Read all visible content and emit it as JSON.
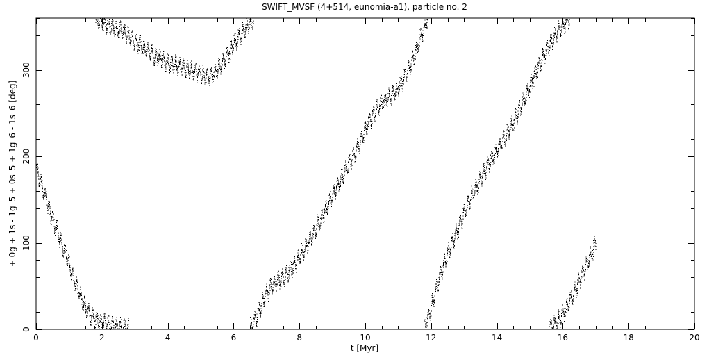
{
  "chart_data": {
    "type": "scatter",
    "title": "SWIFT_MVSF (4+514, eunomia-a1), particle no. 2",
    "xlabel": "t [Myr]",
    "ylabel": "+ 0g + 1s - 1g_5 + 0s_5 + 1g_6 - 1s_6 [deg]",
    "xlim": [
      0,
      20
    ],
    "ylim": [
      0,
      360
    ],
    "xticks": [
      0,
      2,
      4,
      6,
      8,
      10,
      12,
      14,
      16,
      18,
      20
    ],
    "yticks": [
      0,
      100,
      200,
      300
    ],
    "grid": false,
    "legend": "none",
    "point_color": "#000000",
    "series": [
      {
        "x": [
          0.0,
          0.2,
          0.4,
          0.6,
          0.8,
          1.0,
          1.2,
          1.4,
          1.6,
          1.8,
          2.0,
          2.2,
          2.4,
          2.6,
          2.8
        ],
        "values": [
          185,
          162,
          138,
          118,
          95,
          75,
          52,
          33,
          18,
          12,
          8,
          5,
          3,
          2,
          1
        ]
      },
      {
        "x": [
          1.8,
          2.0,
          2.2,
          2.4,
          2.6,
          2.8,
          3.0,
          3.2,
          3.4,
          3.6,
          3.8,
          4.0,
          4.2,
          4.4,
          4.6,
          4.8,
          5.0,
          5.2,
          5.4,
          5.6,
          5.8,
          6.0,
          6.2,
          6.4,
          6.6
        ],
        "values": [
          360,
          355,
          352,
          348,
          345,
          340,
          333,
          328,
          322,
          316,
          312,
          308,
          307,
          304,
          301,
          299,
          295,
          292,
          297,
          305,
          318,
          330,
          340,
          352,
          360
        ]
      },
      {
        "x": [
          6.5,
          6.7,
          6.9,
          7.1,
          7.3,
          7.5,
          7.7,
          7.9,
          8.1,
          8.3,
          8.5,
          8.7,
          8.9,
          9.1,
          9.3,
          9.5,
          9.7,
          9.9,
          10.1,
          10.3,
          10.5,
          10.7,
          10.9,
          11.1,
          11.3,
          11.5,
          11.7,
          11.9
        ],
        "values": [
          2,
          15,
          35,
          48,
          55,
          60,
          68,
          78,
          90,
          102,
          118,
          132,
          148,
          162,
          178,
          192,
          205,
          222,
          240,
          253,
          262,
          268,
          275,
          285,
          300,
          318,
          340,
          360
        ]
      },
      {
        "x": [
          11.8,
          12.0,
          12.2,
          12.4,
          12.6,
          12.8,
          13.0,
          13.2,
          13.4,
          13.6,
          13.8,
          14.0,
          14.2,
          14.4,
          14.6,
          14.8,
          15.0,
          15.2,
          15.4,
          15.6,
          15.8,
          16.0,
          16.2
        ],
        "values": [
          2,
          25,
          55,
          78,
          98,
          115,
          135,
          152,
          168,
          182,
          195,
          208,
          220,
          233,
          248,
          265,
          282,
          300,
          316,
          330,
          342,
          352,
          360
        ]
      },
      {
        "x": [
          15.6,
          15.8,
          16.0,
          16.2,
          16.4,
          16.6,
          16.8,
          17.0
        ],
        "values": [
          2,
          8,
          18,
          32,
          48,
          65,
          82,
          102
        ]
      }
    ]
  }
}
